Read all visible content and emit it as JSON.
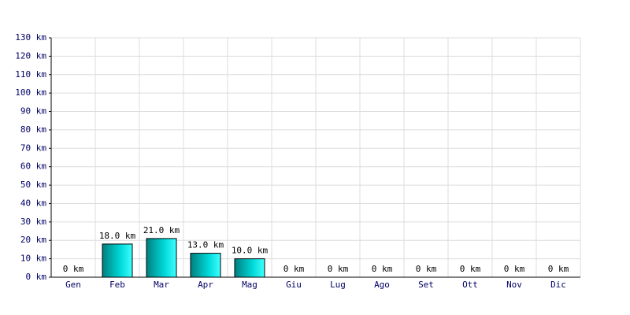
{
  "chart_data": {
    "type": "bar",
    "categories": [
      "Gen",
      "Feb",
      "Mar",
      "Apr",
      "Mag",
      "Giu",
      "Lug",
      "Ago",
      "Set",
      "Ott",
      "Nov",
      "Dic"
    ],
    "values": [
      0,
      18,
      21,
      13,
      10,
      0,
      0,
      0,
      0,
      0,
      0,
      0
    ],
    "value_labels": [
      "0 km",
      "18.0 km",
      "21.0 km",
      "13.0 km",
      "10.0 km",
      "0 km",
      "0 km",
      "0 km",
      "0 km",
      "0 km",
      "0 km",
      "0 km"
    ],
    "color": "#00d8d8",
    "ylim": [
      0,
      130
    ],
    "yticks": [
      {
        "value": 0,
        "label": "0 km"
      },
      {
        "value": 10,
        "label": "10 km"
      },
      {
        "value": 20,
        "label": "20 km"
      },
      {
        "value": 30,
        "label": "30 km"
      },
      {
        "value": 40,
        "label": "40 km"
      },
      {
        "value": 50,
        "label": "50 km"
      },
      {
        "value": 60,
        "label": "60 km"
      },
      {
        "value": 70,
        "label": "70 km"
      },
      {
        "value": 80,
        "label": "80 km"
      },
      {
        "value": 90,
        "label": "90 km"
      },
      {
        "value": 100,
        "label": "100 km"
      },
      {
        "value": 110,
        "label": "110 km"
      },
      {
        "value": 120,
        "label": "120 km"
      },
      {
        "value": 130,
        "label": "130 km"
      }
    ],
    "grid": true
  }
}
